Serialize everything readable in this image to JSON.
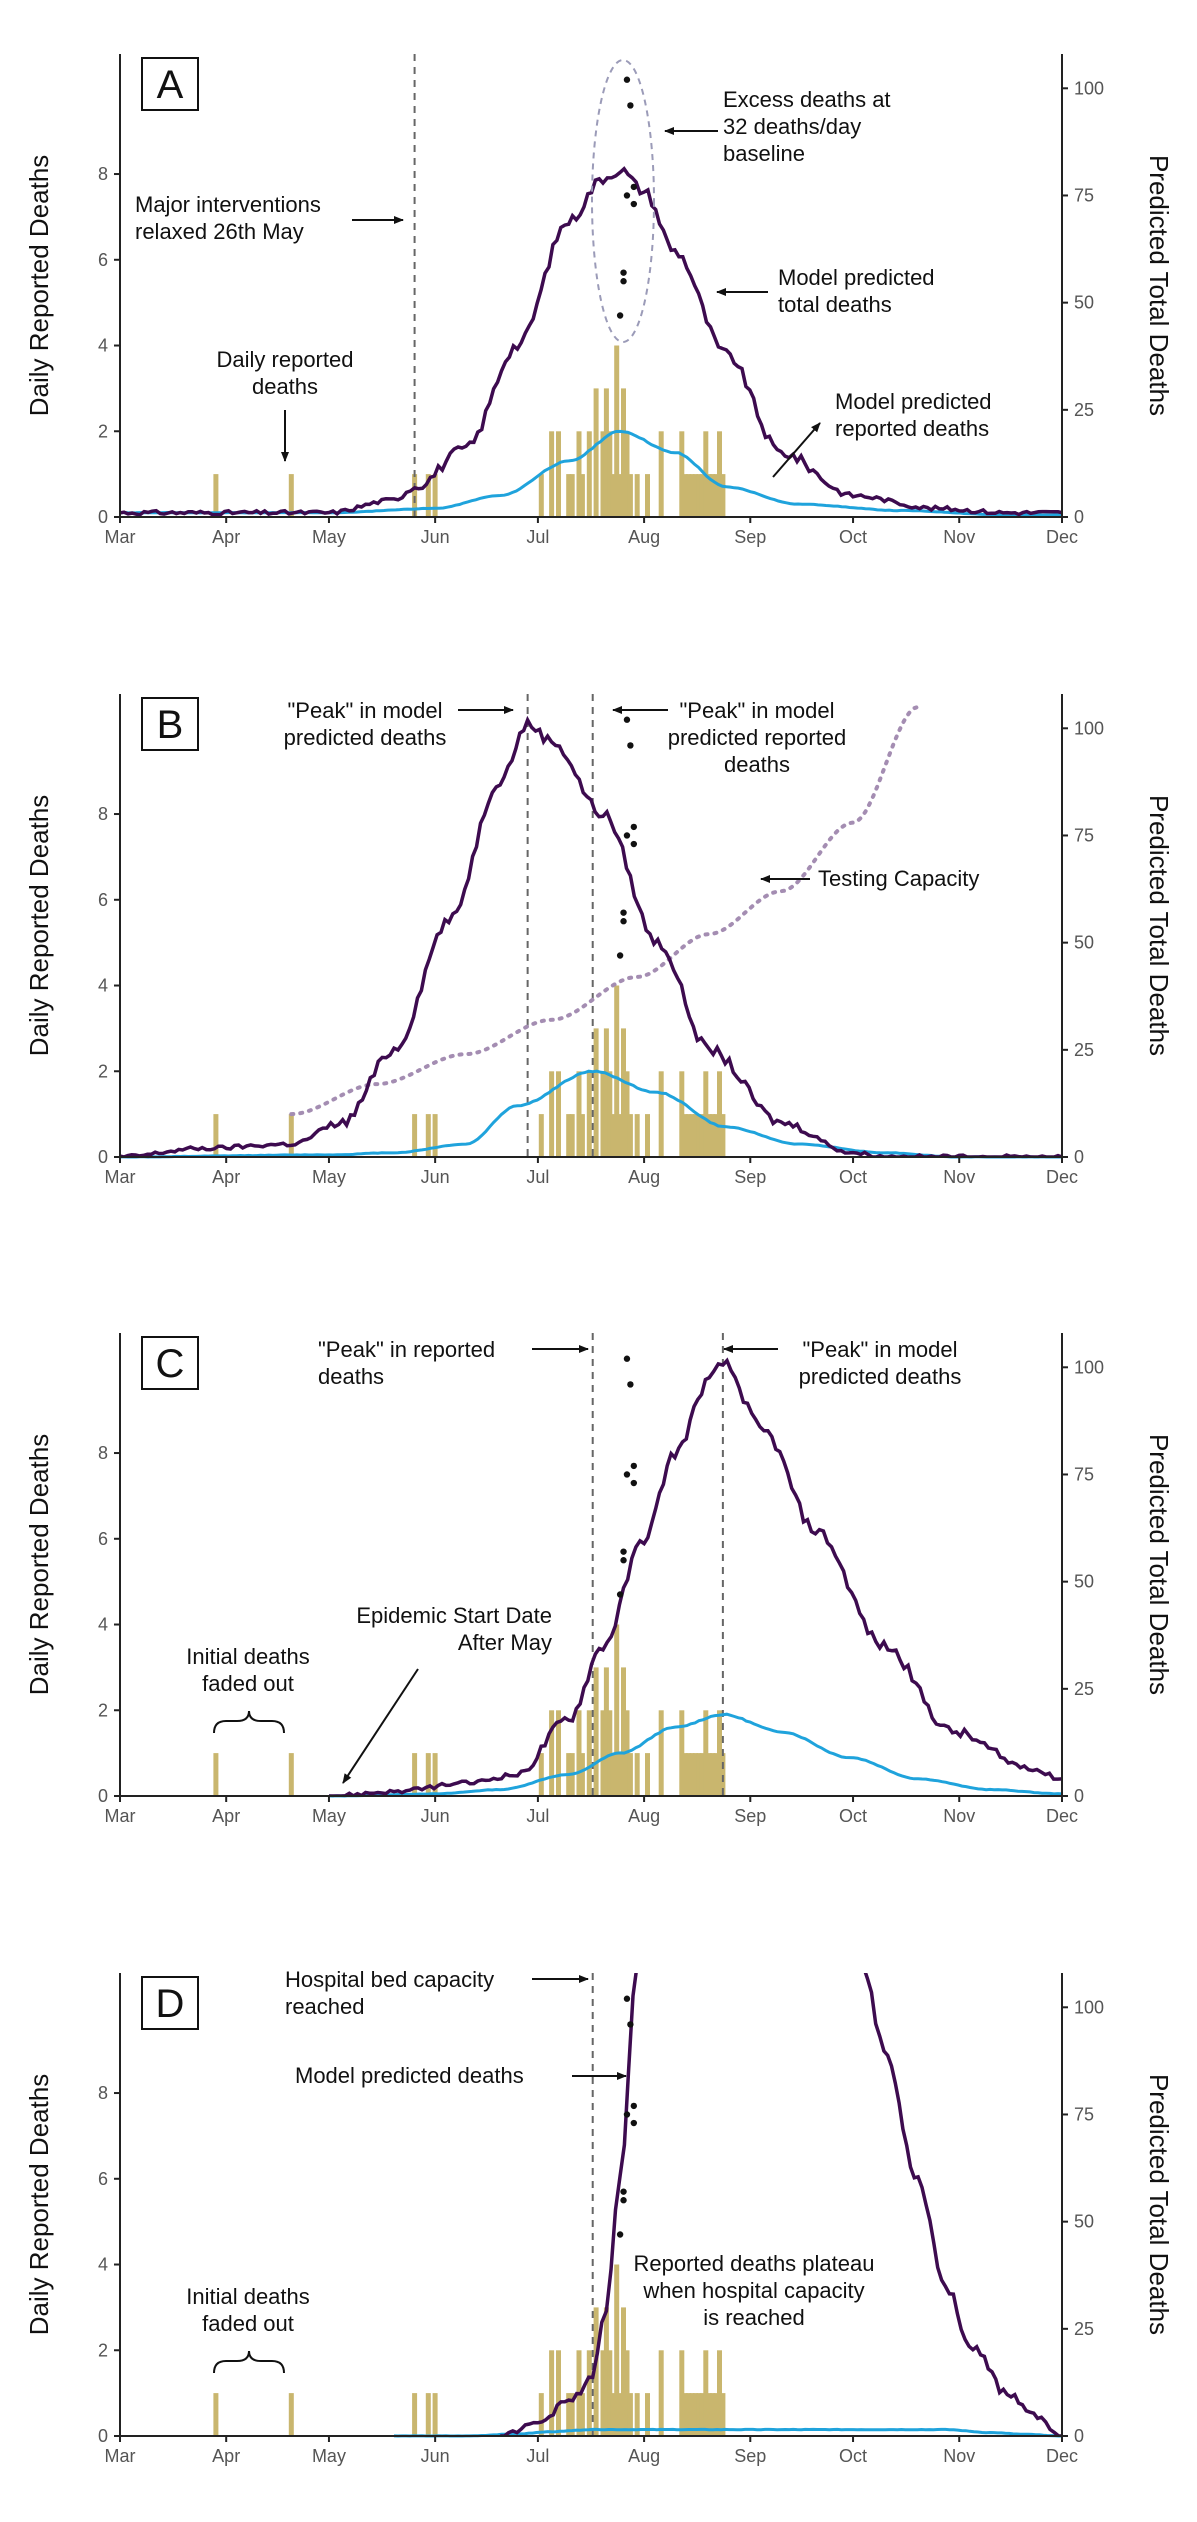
{
  "colors": {
    "total": "#3d0b4f",
    "reported": "#1fa3dc",
    "bars": "#c9b66e",
    "points": "#111111",
    "testing": "#a48db2",
    "ellipse": "#9b9bb8",
    "vline": "#666666"
  },
  "chart_data": [
    {
      "panel": "A",
      "type": "bar+line",
      "ylabel": "Daily Reported Deaths",
      "y2label": "Predicted Total Deaths",
      "x_ticks": [
        "Mar",
        "Apr",
        "May",
        "Jun",
        "Jul",
        "Aug",
        "Sep",
        "Oct",
        "Nov",
        "Dec"
      ],
      "y_ticks": [
        "0",
        "2",
        "4",
        "6",
        "8"
      ],
      "y2_ticks": [
        "0",
        "25",
        "50",
        "75",
        "100"
      ],
      "ylim": [
        0,
        10.8
      ],
      "y2lim": [
        0,
        108
      ],
      "reported_deaths_bars": {
        "x": [
          "03-29",
          "04-20",
          "05-26",
          "05-30",
          "06-01",
          "07-27",
          "07-02",
          "07-05",
          "07-07",
          "07-10",
          "07-11",
          "07-13",
          "07-14",
          "07-16",
          "07-18",
          "07-20",
          "07-21",
          "07-22",
          "07-23",
          "07-24",
          "07-25",
          "07-26",
          "07-28",
          "07-30",
          "08-02",
          "08-06",
          "08-12",
          "08-13",
          "08-14",
          "08-15",
          "08-16",
          "08-17",
          "08-18",
          "08-19",
          "08-20",
          "08-21",
          "08-22",
          "08-23",
          "08-24"
        ],
        "values": [
          1,
          1,
          1,
          1,
          1,
          2,
          1,
          2,
          2,
          1,
          1,
          2,
          1,
          2,
          3,
          2,
          3,
          2,
          1,
          4,
          1,
          3,
          1,
          1,
          1,
          2,
          2,
          1,
          1,
          1,
          1,
          1,
          1,
          2,
          1,
          1,
          1,
          2,
          1
        ]
      },
      "excess_points": {
        "x": [
          "07-27",
          "07-28",
          "07-29",
          "07-27",
          "07-29",
          "07-26",
          "07-26",
          "07-25"
        ],
        "values": [
          10.2,
          9.6,
          7.7,
          7.5,
          7.3,
          5.7,
          5.5,
          4.7
        ]
      },
      "total_deaths": {
        "x": [
          "03-01",
          "05-01",
          "05-20",
          "05-26",
          "06-10",
          "06-25",
          "07-10",
          "07-20",
          "07-25",
          "08-01",
          "08-10",
          "08-25",
          "09-10",
          "10-01",
          "10-25",
          "11-15",
          "12-01"
        ],
        "values": [
          1,
          1,
          4,
          7,
          16,
          40,
          69,
          79,
          81,
          76,
          62,
          38,
          15,
          5,
          2,
          1,
          1
        ]
      },
      "reported_model": {
        "x": [
          "03-01",
          "05-01",
          "06-01",
          "06-20",
          "07-10",
          "07-25",
          "08-10",
          "08-25",
          "09-15",
          "10-15",
          "11-15",
          "12-01"
        ],
        "values": [
          1,
          1,
          2,
          5,
          13,
          20,
          15,
          7,
          3,
          1.5,
          0.5,
          0.5
        ]
      },
      "vlines": [
        "05-26"
      ],
      "annotations": {
        "intervention": [
          "Major interventions",
          "relaxed 26th May"
        ],
        "daily": [
          "Daily reported",
          "deaths"
        ],
        "excess": [
          "Excess deaths at",
          "32 deaths/day",
          "baseline"
        ],
        "mtotal": [
          "Model predicted",
          "total deaths"
        ],
        "mreported": [
          "Model predicted",
          "reported deaths"
        ]
      }
    },
    {
      "panel": "B",
      "type": "bar+line",
      "ylabel": "Daily Reported Deaths",
      "y2label": "Predicted Total Deaths",
      "x_ticks": [
        "Mar",
        "Apr",
        "May",
        "Jun",
        "Jul",
        "Aug",
        "Sep",
        "Oct",
        "Nov",
        "Dec"
      ],
      "y_ticks": [
        "0",
        "2",
        "4",
        "6",
        "8"
      ],
      "y2_ticks": [
        "0",
        "25",
        "50",
        "75",
        "100"
      ],
      "ylim": [
        0,
        10.8
      ],
      "y2lim": [
        0,
        108
      ],
      "total_deaths": {
        "x": [
          "03-01",
          "03-25",
          "04-20",
          "05-05",
          "05-20",
          "06-05",
          "06-20",
          "06-28",
          "07-05",
          "07-20",
          "08-05",
          "08-20",
          "09-10",
          "10-01",
          "10-10",
          "12-01"
        ],
        "values": [
          0,
          2,
          3,
          8,
          25,
          55,
          88,
          101,
          97,
          80,
          50,
          25,
          8,
          1,
          0,
          0
        ]
      },
      "reported_model": {
        "x": [
          "03-01",
          "05-01",
          "05-20",
          "06-10",
          "06-25",
          "07-17",
          "08-05",
          "08-25",
          "09-15",
          "10-10",
          "11-01",
          "12-01"
        ],
        "values": [
          0,
          0.5,
          1,
          3,
          12,
          20,
          15,
          7,
          3,
          1,
          0,
          0
        ]
      },
      "testing_capacity": {
        "x": [
          "04-20",
          "05-15",
          "06-10",
          "07-05",
          "07-30",
          "08-20",
          "09-10",
          "10-01",
          "10-20"
        ],
        "values": [
          10,
          17,
          24,
          32,
          42,
          52,
          62,
          78,
          105
        ]
      },
      "vlines": [
        "06-28",
        "07-17"
      ],
      "annotations": {
        "peak_model": [
          "\"Peak\" in model",
          "predicted deaths"
        ],
        "peak_rep": [
          "\"Peak\" in model",
          "predicted reported",
          "deaths"
        ],
        "testing": [
          "Testing Capacity"
        ]
      }
    },
    {
      "panel": "C",
      "type": "bar+line",
      "ylabel": "Daily Reported Deaths",
      "y2label": "Predicted Total Deaths",
      "x_ticks": [
        "Mar",
        "Apr",
        "May",
        "Jun",
        "Jul",
        "Aug",
        "Sep",
        "Oct",
        "Nov",
        "Dec"
      ],
      "y_ticks": [
        "0",
        "2",
        "4",
        "6",
        "8"
      ],
      "y2_ticks": [
        "0",
        "25",
        "50",
        "75",
        "100"
      ],
      "ylim": [
        0,
        10.8
      ],
      "y2lim": [
        0,
        108
      ],
      "total_deaths": {
        "x": [
          "05-01",
          "05-20",
          "06-10",
          "06-25",
          "07-10",
          "07-20",
          "08-01",
          "08-10",
          "08-20",
          "08-24",
          "09-05",
          "09-20",
          "10-10",
          "10-30",
          "11-20",
          "12-01"
        ],
        "values": [
          0,
          1,
          3,
          5,
          18,
          35,
          60,
          80,
          97,
          101,
          85,
          62,
          35,
          15,
          7,
          4
        ]
      },
      "reported_model": {
        "x": [
          "05-01",
          "06-01",
          "06-20",
          "07-10",
          "07-25",
          "08-10",
          "08-24",
          "09-10",
          "09-30",
          "10-20",
          "11-10",
          "12-01"
        ],
        "values": [
          0,
          0.5,
          1.5,
          5,
          10,
          16,
          19,
          15,
          9,
          4,
          1.5,
          0.5
        ]
      },
      "vlines": [
        "07-17",
        "08-24"
      ],
      "annotations": {
        "peak_rep": [
          "\"Peak\" in reported",
          "deaths"
        ],
        "peak_model": [
          "\"Peak\" in model",
          "predicted deaths"
        ],
        "epi": [
          "Epidemic Start Date",
          "After May"
        ],
        "initial": [
          "Initial deaths",
          "faded out"
        ]
      }
    },
    {
      "panel": "D",
      "type": "bar+line",
      "ylabel": "Daily Reported Deaths",
      "y2label": "Predicted Total Deaths",
      "x_ticks": [
        "Mar",
        "Apr",
        "May",
        "Jun",
        "Jul",
        "Aug",
        "Sep",
        "Oct",
        "Nov",
        "Dec"
      ],
      "y_ticks": [
        "0",
        "2",
        "4",
        "6",
        "8"
      ],
      "y2_ticks": [
        "0",
        "25",
        "50",
        "75",
        "100"
      ],
      "ylim": [
        0,
        10.8
      ],
      "y2lim": [
        0,
        108
      ],
      "total_deaths_rise": {
        "x": [
          "06-20",
          "07-01",
          "07-10",
          "07-17",
          "07-21",
          "07-25",
          "07-30"
        ],
        "values": [
          0,
          3,
          8,
          14,
          30,
          60,
          110
        ]
      },
      "total_deaths_fall": {
        "x": [
          "10-04",
          "10-10",
          "10-20",
          "10-28",
          "11-05",
          "11-15",
          "11-25",
          "11-30",
          "12-01"
        ],
        "values": [
          110,
          90,
          60,
          35,
          20,
          10,
          4,
          0,
          0
        ]
      },
      "reported_model": {
        "x": [
          "05-20",
          "06-10",
          "06-25",
          "07-05",
          "07-17",
          "10-28",
          "11-10",
          "11-20",
          "11-30",
          "12-01"
        ],
        "values": [
          0,
          0,
          0.5,
          1,
          1.5,
          1.5,
          0.8,
          0.4,
          0,
          0
        ]
      },
      "vlines": [
        "07-17"
      ],
      "annotations": {
        "hosp": [
          "Hospital bed capacity",
          "reached"
        ],
        "mpd": [
          "Model predicted deaths"
        ],
        "plateau": [
          "Reported deaths plateau",
          "when hospital capacity",
          "is reached"
        ],
        "initial": [
          "Initial deaths",
          "faded out"
        ]
      }
    }
  ]
}
